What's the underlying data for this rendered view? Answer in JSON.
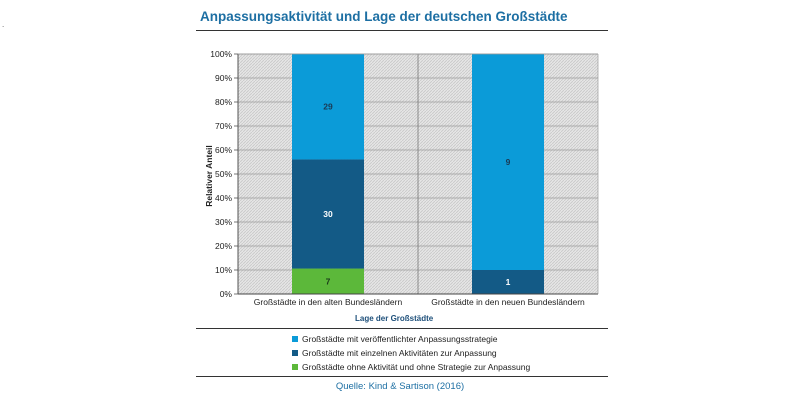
{
  "header": {
    "marker": "."
  },
  "chart_data": {
    "type": "bar",
    "stacked": true,
    "normalized_percent": true,
    "title": "Anpassungsaktivität und Lage der deutschen Großstädte",
    "xlabel": "Lage der Großstädte",
    "ylabel": "Relativer Anteil",
    "ylim": [
      0,
      100
    ],
    "yticks": [
      "0%",
      "10%",
      "20%",
      "30%",
      "40%",
      "50%",
      "60%",
      "70%",
      "80%",
      "90%",
      "100%"
    ],
    "categories": [
      "Großstädte in den alten Bundesländern",
      "Großstädte in den neuen Bundesländern"
    ],
    "series": [
      {
        "name": "Großstädte ohne Aktivität und ohne Strategie zur Anpassung",
        "values": [
          7,
          0
        ],
        "color": "#5cb83a",
        "label_color": "#1a3a1a"
      },
      {
        "name": "Großstädte mit einzelnen Aktivitäten zur Anpassung",
        "values": [
          30,
          1
        ],
        "color": "#135a86",
        "label_color": "#ffffff"
      },
      {
        "name": "Großstädte mit veröffentlichter Anpassungsstrategie",
        "values": [
          29,
          9
        ],
        "color": "#0b9bd8",
        "label_color": "#1a3a55"
      }
    ],
    "legend_order": [
      2,
      1,
      0
    ],
    "grid": true,
    "source": "Quelle: Kind & Sartison (2016)"
  }
}
